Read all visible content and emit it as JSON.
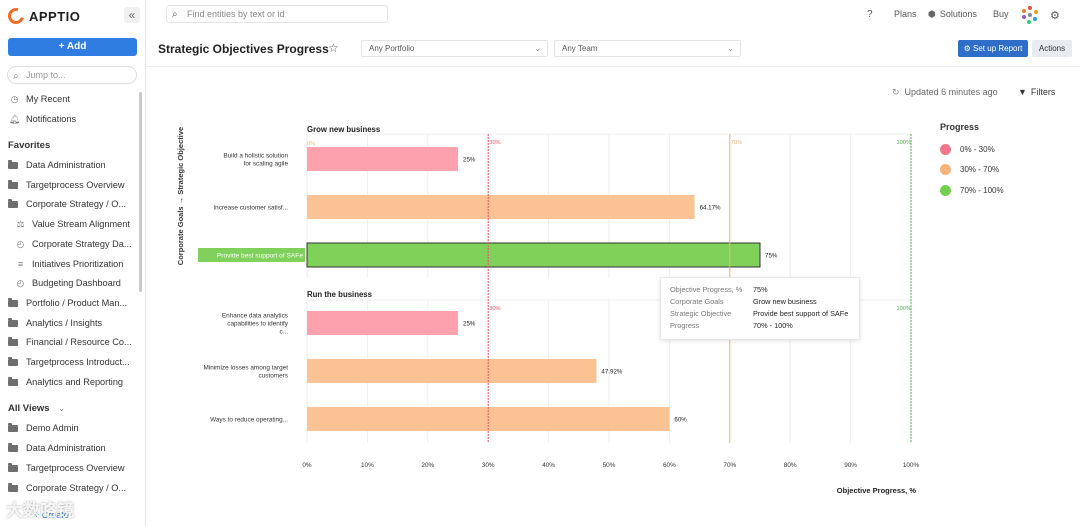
{
  "app": {
    "logo": "APPTIO",
    "collapse_icon": "«"
  },
  "sidebar": {
    "add_label": "+ Add",
    "jump_placeholder": "Jump to...",
    "recent": "My Recent",
    "notifications": "Notifications",
    "favorites_title": "Favorites",
    "favorites": [
      "Data Administration",
      "Targetprocess Overview",
      "Corporate Strategy / O...",
      "Value Stream Alignment",
      "Corporate Strategy Da...",
      "Initiatives Prioritization",
      "Budgeting Dashboard",
      "Portfolio / Product Man...",
      "Analytics / Insights",
      "Financial / Resource Co...",
      "Targetprocess Introduct...",
      "Analytics and Reporting"
    ],
    "all_views_title": "All Views",
    "all_views": [
      "Demo Admin",
      "Data Administration",
      "Targetprocess Overview",
      "Corporate Strategy / O..."
    ],
    "create_label": "+ Create"
  },
  "topbar": {
    "search_placeholder": "Find entities by text or id",
    "help": "?",
    "plans": "Plans",
    "solutions": "Solutions",
    "buy": "Buy"
  },
  "page": {
    "title": "Strategic Objectives Progress",
    "portfolio_select": "Any Portfolio",
    "team_select": "Any Team",
    "setup_report": "Set up Report",
    "actions": "Actions",
    "updated": "Updated 6 minutes ago",
    "filters": "Filters"
  },
  "legend": {
    "title": "Progress",
    "items": [
      {
        "label": "0% - 30%",
        "color": "#f0788a"
      },
      {
        "label": "30% - 70%",
        "color": "#f9b27a"
      },
      {
        "label": "70% - 100%",
        "color": "#72cf4f"
      }
    ]
  },
  "tooltip": {
    "rows": [
      {
        "key": "Objective Progress, %",
        "value": "75%"
      },
      {
        "key": "Corporate Goals",
        "value": "Grow new business"
      },
      {
        "key": "Strategic Objective",
        "value": "Provide best support of SAFe"
      },
      {
        "key": "Progress",
        "value": "70% - 100%"
      }
    ]
  },
  "chart_data": {
    "type": "bar",
    "orientation": "horizontal",
    "ylabel": "Corporate Goals → Strategic Objective",
    "xlabel": "Objective Progress, %",
    "xlim": [
      0,
      100
    ],
    "xticks": [
      "0%",
      "10%",
      "20%",
      "30%",
      "40%",
      "50%",
      "60%",
      "70%",
      "80%",
      "90%",
      "100%"
    ],
    "thresholds": [
      {
        "value": 30,
        "label": "30%",
        "color": "#e2526a"
      },
      {
        "value": 70,
        "label": "70%",
        "color": "#f2b27a"
      },
      {
        "value": 100,
        "label": "100%",
        "color": "#4caf50"
      }
    ],
    "top_zero_label": "0%",
    "groups": [
      {
        "name": "Grow new business",
        "thresholds_shown": [
          "30%",
          "70%",
          "100%"
        ],
        "bars": [
          {
            "label": "Build a holistic solution for scaling agile",
            "value": 25,
            "value_label": "25%",
            "color": "#fca1ad"
          },
          {
            "label": "Increase customer satisf...",
            "value": 64.17,
            "value_label": "64.17%",
            "color": "#fbc394"
          },
          {
            "label": "Provide best support of SAFe",
            "value": 75,
            "value_label": "75%",
            "color": "#7fd15a",
            "highlighted": true
          }
        ]
      },
      {
        "name": "Run the business",
        "thresholds_shown": [
          "30%",
          "100%"
        ],
        "bars": [
          {
            "label": "Enhance data analytics capabilities to identify c...",
            "value": 25,
            "value_label": "25%",
            "color": "#fca1ad"
          },
          {
            "label": "Minimize losses among target customers",
            "value": 47.92,
            "value_label": "47.92%",
            "color": "#fbc394"
          },
          {
            "label": "Ways to reduce operating...",
            "value": 60,
            "value_label": "60%",
            "color": "#fbc394"
          }
        ]
      }
    ]
  },
  "watermark": "大数咯镜"
}
